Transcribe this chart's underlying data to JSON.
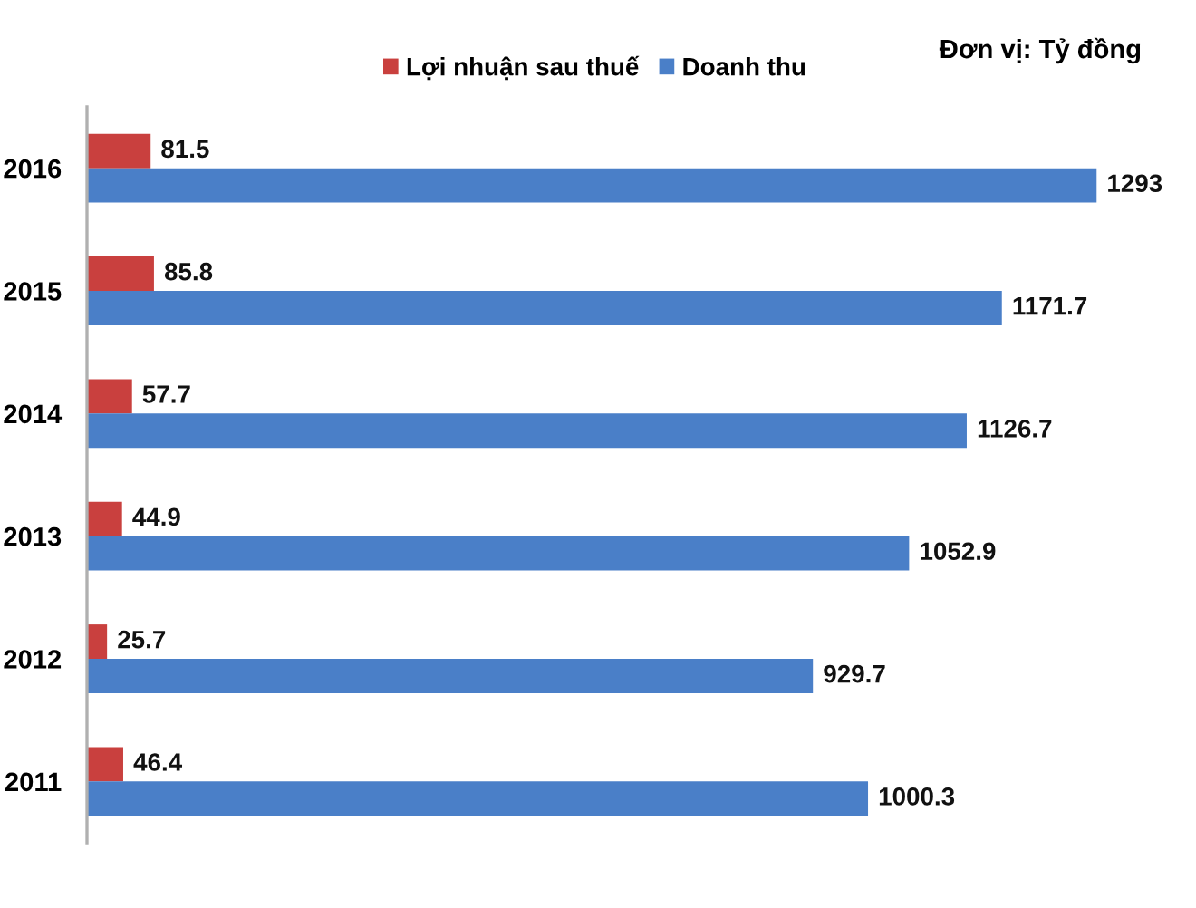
{
  "chart_data": {
    "type": "bar",
    "orientation": "horizontal",
    "categories": [
      "2016",
      "2015",
      "2014",
      "2013",
      "2012",
      "2011"
    ],
    "series": [
      {
        "name": "Lợi nhuận sau thuế",
        "color": "#c9403e",
        "values": [
          81.5,
          85.8,
          57.7,
          44.9,
          25.7,
          46.4
        ]
      },
      {
        "name": "Doanh thu",
        "color": "#4a7fc8",
        "values": [
          1293,
          1171.7,
          1126.7,
          1052.9,
          929.7,
          1000.3
        ]
      }
    ],
    "annotations": [
      "Đơn vị: Tỷ đồng"
    ],
    "data_labels": true,
    "legend": "top",
    "grid": false,
    "tick_labels": "y"
  }
}
